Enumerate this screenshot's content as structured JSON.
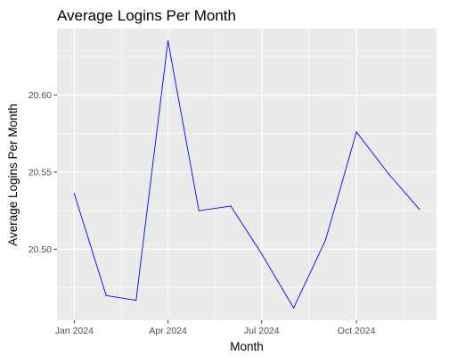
{
  "chart_data": {
    "type": "line",
    "title": "Average Logins Per Month",
    "xlabel": "Month",
    "ylabel": "Average Logins Per Month",
    "x": [
      "2024-01",
      "2024-02",
      "2024-03",
      "2024-04",
      "2024-05",
      "2024-06",
      "2024-07",
      "2024-08",
      "2024-09",
      "2024-10",
      "2024-11",
      "2024-12"
    ],
    "series": [
      {
        "values": [
          20.536,
          20.47,
          20.467,
          20.635,
          20.525,
          20.528,
          20.497,
          20.462,
          20.506,
          20.576,
          20.549,
          20.526
        ],
        "color": "#0000ff"
      }
    ],
    "x_ticks": [
      {
        "value": "2024-01",
        "label": "Jan 2024"
      },
      {
        "value": "2024-04",
        "label": "Apr 2024"
      },
      {
        "value": "2024-07",
        "label": "Jul 2024"
      },
      {
        "value": "2024-10",
        "label": "Oct 2024"
      }
    ],
    "y_ticks": [
      20.5,
      20.55,
      20.6
    ],
    "y_tick_labels": [
      "20.50",
      "20.55",
      "20.60"
    ],
    "ylim": [
      20.454,
      20.643
    ],
    "grid": true,
    "legend": "none",
    "panel_color": "#ebebeb",
    "grid_color": "#ffffff"
  }
}
